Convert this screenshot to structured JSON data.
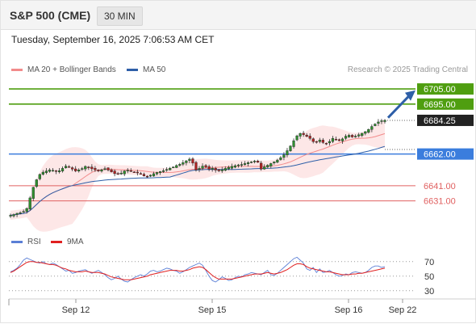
{
  "header": {
    "title": "S&P 500 (CME)",
    "timeframe_label": "30 MIN"
  },
  "datetime": "Tuesday, September 16, 2025 7:06:53 AM CET",
  "legend": {
    "items": [
      {
        "label": "MA 20 + Bollinger Bands",
        "color": "#f28b8b"
      },
      {
        "label": "MA 50",
        "color": "#2e5fa8"
      }
    ],
    "credit": "Research © 2025 Trading Central"
  },
  "rsi_legend": {
    "items": [
      {
        "label": "RSI",
        "color": "#5b7fd6"
      },
      {
        "label": "9MA",
        "color": "#e02020"
      }
    ]
  },
  "colors": {
    "resistance": "#4f9e10",
    "current": "#222222",
    "pivot": "#3b7ddd",
    "support": "#e06060",
    "bollinger_fill": "#fde3e3",
    "candle_up": "#2f8f2f",
    "candle_down": "#b02222",
    "arrow": "#2e5fa8"
  },
  "chart_data": [
    {
      "type": "candlestick",
      "ylim": [
        6618,
        6712
      ],
      "x_ticks": [
        "Sep 12",
        "Sep 15",
        "Sep 16",
        "Sep 22"
      ],
      "levels": [
        {
          "value": 6705.0,
          "label": "6705.00",
          "kind": "resistance"
        },
        {
          "value": 6695.0,
          "label": "6695.00",
          "kind": "resistance"
        },
        {
          "value": 6684.25,
          "label": "6684.25",
          "kind": "current"
        },
        {
          "value": 6662.0,
          "label": "6662.00",
          "kind": "pivot"
        },
        {
          "value": 6641.0,
          "label": "6641.00",
          "kind": "support"
        },
        {
          "value": 6631.0,
          "label": "6631.00",
          "kind": "support"
        }
      ],
      "close": [
        6621.5,
        6622.0,
        6622.8,
        6623.2,
        6624.0,
        6626.0,
        6633.0,
        6640.0,
        6645.0,
        6648.5,
        6650.0,
        6650.8,
        6651.5,
        6651.2,
        6650.5,
        6651.0,
        6652.5,
        6654.0,
        6653.5,
        6652.0,
        6650.8,
        6651.5,
        6652.4,
        6653.8,
        6653.0,
        6652.2,
        6651.5,
        6650.8,
        6651.6,
        6652.3,
        6651.4,
        6650.2,
        6649.0,
        6648.6,
        6649.4,
        6650.8,
        6651.3,
        6650.7,
        6650.0,
        6649.5,
        6648.9,
        6647.5,
        6647.0,
        6648.0,
        6649.0,
        6649.8,
        6650.4,
        6651.0,
        6651.8,
        6652.6,
        6653.4,
        6654.4,
        6655.2,
        6656.3,
        6657.5,
        6658.6,
        6656.0,
        6651.5,
        6652.5,
        6654.0,
        6653.2,
        6652.0,
        6652.6,
        6651.4,
        6650.9,
        6651.6,
        6652.5,
        6653.2,
        6653.8,
        6654.3,
        6654.8,
        6655.1,
        6655.7,
        6656.3,
        6656.8,
        6657.4,
        6656.5,
        6652.0,
        6653.5,
        6654.6,
        6655.7,
        6656.8,
        6658.0,
        6659.6,
        6661.5,
        6664.2,
        6667.3,
        6670.8,
        6674.0,
        6675.6,
        6674.8,
        6673.6,
        6672.3,
        6670.2,
        6669.8,
        6671.2,
        6669.6,
        6668.8,
        6670.3,
        6672.3,
        6671.8,
        6670.8,
        6672.0,
        6673.8,
        6674.4,
        6673.3,
        6673.8,
        6674.7,
        6675.7,
        6676.8,
        6678.3,
        6680.2,
        6681.8,
        6683.2,
        6684.0,
        6684.25
      ]
    },
    {
      "type": "line",
      "title": "RSI",
      "ylim": [
        22,
        82
      ],
      "y_ticks": [
        70,
        50,
        30
      ],
      "series": [
        {
          "name": "RSI",
          "values": [
            56,
            58,
            61,
            66,
            72,
            75,
            73,
            71,
            69,
            68,
            70,
            67,
            66,
            68,
            66,
            63,
            60,
            57,
            58,
            54,
            55,
            57,
            58,
            59,
            56,
            54,
            56,
            58,
            55,
            52,
            48,
            45,
            47,
            50,
            46,
            43,
            42,
            45,
            48,
            50,
            52,
            50,
            53,
            57,
            58,
            56,
            57,
            59,
            61,
            60,
            58,
            57,
            54,
            56,
            59,
            62,
            64,
            66,
            68,
            65,
            58,
            50,
            44,
            42,
            45,
            49,
            47,
            44,
            45,
            48,
            50,
            49,
            52,
            53,
            55,
            54,
            53,
            52,
            55,
            58,
            52,
            51,
            54,
            58,
            62,
            66,
            70,
            74,
            76,
            72,
            68,
            60,
            58,
            62,
            55,
            60,
            55,
            56,
            58,
            55,
            52,
            50,
            51,
            53,
            52,
            55,
            56,
            55,
            54,
            55,
            58,
            62,
            64,
            64,
            62,
            63
          ]
        },
        {
          "name": "9MA",
          "values": [
            55,
            57,
            60,
            63,
            66,
            69,
            70,
            70,
            69,
            69,
            68,
            67,
            66,
            66,
            65,
            63,
            61,
            60,
            58,
            57,
            56,
            56,
            56,
            57,
            56,
            55,
            55,
            55,
            54,
            53,
            51,
            49,
            48,
            47,
            46,
            45,
            45,
            45,
            46,
            47,
            48,
            49,
            50,
            52,
            53,
            54,
            55,
            56,
            57,
            58,
            58,
            58,
            57,
            57,
            58,
            59,
            61,
            62,
            63,
            62,
            59,
            55,
            51,
            48,
            46,
            46,
            46,
            46,
            46,
            47,
            48,
            49,
            50,
            51,
            52,
            53,
            53,
            53,
            54,
            55,
            54,
            53,
            54,
            55,
            57,
            59,
            62,
            65,
            67,
            67,
            66,
            63,
            61,
            60,
            59,
            58,
            57,
            56,
            56,
            55,
            54,
            53,
            52,
            52,
            52,
            53,
            53,
            54,
            54,
            55,
            56,
            57,
            58,
            59,
            60,
            61
          ]
        }
      ]
    }
  ]
}
